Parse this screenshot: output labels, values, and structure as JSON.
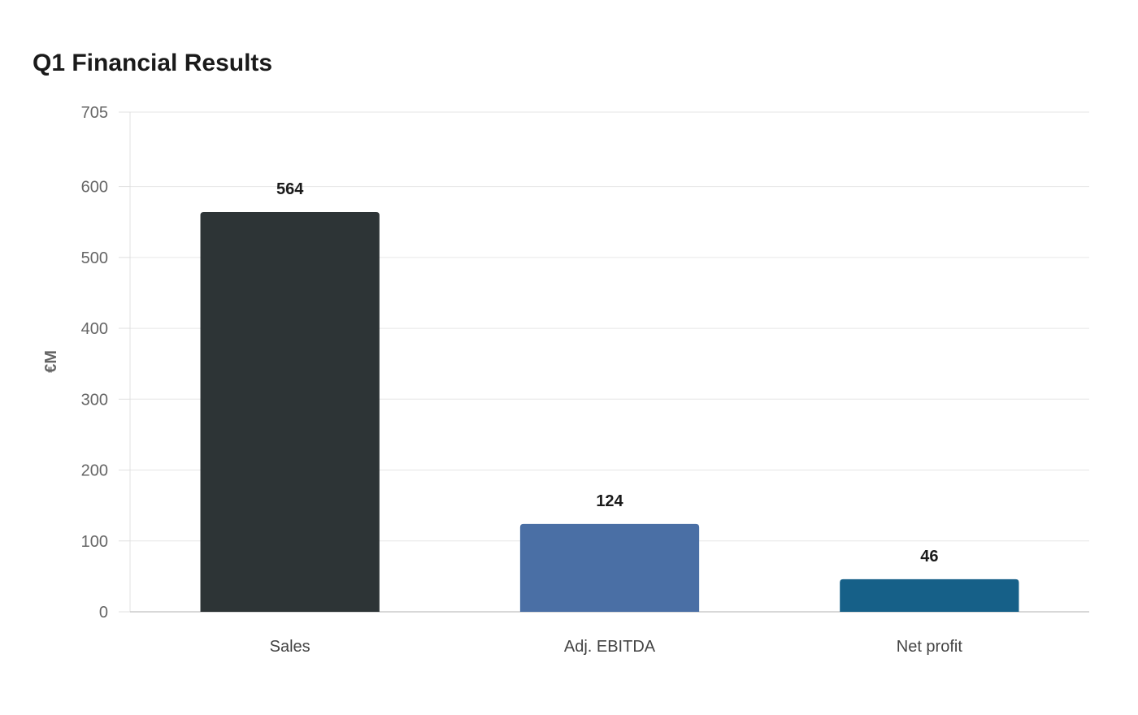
{
  "chart_data": {
    "type": "bar",
    "title": "Q1 Financial Results",
    "xlabel": "",
    "ylabel": "€M",
    "categories": [
      "Sales",
      "Adj. EBITDA",
      "Net profit"
    ],
    "values": [
      564,
      124,
      46
    ],
    "data_labels": [
      "564",
      "124",
      "46"
    ],
    "colors": [
      "#2d3436",
      "#4a6fa5",
      "#166088"
    ],
    "ylim": [
      0,
      705
    ],
    "yticks": [
      0,
      100,
      200,
      300,
      400,
      500,
      600,
      705
    ],
    "grid": true,
    "legend": "none"
  }
}
